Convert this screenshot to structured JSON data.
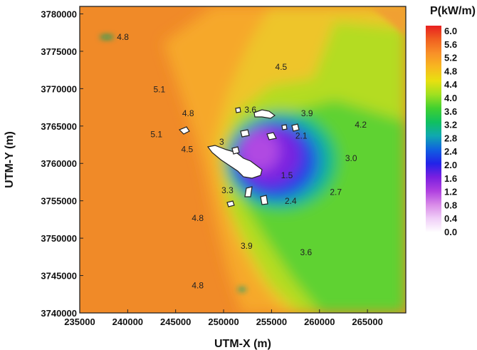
{
  "chart_data": {
    "type": "heatmap",
    "title": "",
    "xlabel": "UTM-X (m)",
    "ylabel": "UTM-Y (m)",
    "xlim": [
      235000,
      269000
    ],
    "ylim": [
      3740000,
      3781000
    ],
    "x_ticks": [
      235000,
      240000,
      245000,
      250000,
      255000,
      260000,
      265000
    ],
    "x_tick_labels": [
      "235000",
      "240000",
      "245000",
      "250000",
      "255000",
      "260000",
      "265000"
    ],
    "y_ticks": [
      3740000,
      3745000,
      3750000,
      3755000,
      3760000,
      3765000,
      3770000,
      3775000,
      3780000
    ],
    "y_tick_labels": [
      "3740000",
      "3745000",
      "3750000",
      "3755000",
      "3760000",
      "3765000",
      "3770000",
      "3775000",
      "3780000"
    ],
    "colorbar": {
      "title": "P(kW/m)",
      "levels": [
        0.0,
        0.4,
        0.8,
        1.2,
        1.6,
        2.0,
        2.4,
        2.8,
        3.2,
        3.6,
        4.0,
        4.4,
        4.8,
        5.2,
        5.6,
        6.0
      ],
      "level_labels": [
        "0.0",
        "0.4",
        "0.8",
        "1.2",
        "1.6",
        "2.0",
        "2.4",
        "2.8",
        "3.2",
        "3.6",
        "4.0",
        "4.4",
        "4.8",
        "5.2",
        "5.6",
        "6.0"
      ],
      "colors": [
        "#ffffff",
        "#f0cff8",
        "#d98ce8",
        "#b040e0",
        "#7a1fe0",
        "#2222e8",
        "#1060e0",
        "#10a8b0",
        "#10c060",
        "#40d030",
        "#a0e020",
        "#e8e010",
        "#f8b820",
        "#f89028",
        "#f06020",
        "#e82020"
      ]
    },
    "contour_labels": [
      {
        "x": 239500,
        "y": 3776500,
        "text": "4.8"
      },
      {
        "x": 256000,
        "y": 3772500,
        "text": "4.5"
      },
      {
        "x": 243300,
        "y": 3769500,
        "text": "5.1"
      },
      {
        "x": 246300,
        "y": 3766300,
        "text": "4.8"
      },
      {
        "x": 243000,
        "y": 3763500,
        "text": "5.1"
      },
      {
        "x": 246200,
        "y": 3761500,
        "text": "4.5"
      },
      {
        "x": 252800,
        "y": 3766800,
        "text": "3.6"
      },
      {
        "x": 258700,
        "y": 3766300,
        "text": "3.9"
      },
      {
        "x": 264300,
        "y": 3764800,
        "text": "4.2"
      },
      {
        "x": 258100,
        "y": 3763300,
        "text": "2.1"
      },
      {
        "x": 263300,
        "y": 3760300,
        "text": "3.0"
      },
      {
        "x": 249800,
        "y": 3762500,
        "text": "3"
      },
      {
        "x": 256600,
        "y": 3758000,
        "text": "1.5"
      },
      {
        "x": 250400,
        "y": 3756000,
        "text": "3.3"
      },
      {
        "x": 261700,
        "y": 3755800,
        "text": "2.7"
      },
      {
        "x": 257000,
        "y": 3754600,
        "text": "2.4"
      },
      {
        "x": 247300,
        "y": 3752300,
        "text": "4.8"
      },
      {
        "x": 252400,
        "y": 3748600,
        "text": "3.9"
      },
      {
        "x": 258600,
        "y": 3747700,
        "text": "3.6"
      },
      {
        "x": 247300,
        "y": 3743300,
        "text": "4.8"
      }
    ]
  }
}
